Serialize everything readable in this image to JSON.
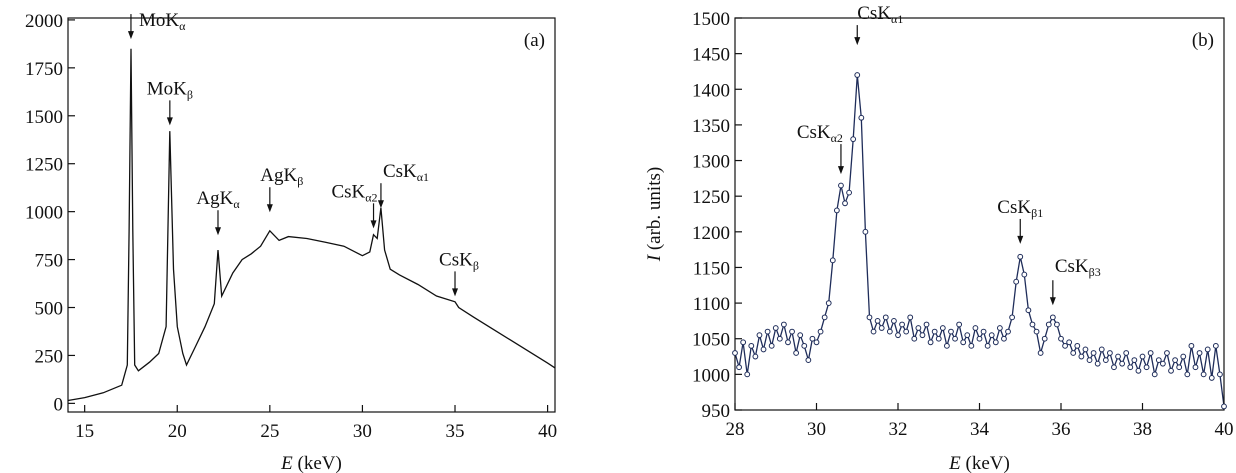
{
  "chart_data": [
    {
      "type": "line",
      "panel_label": "(a)",
      "x_label": "E (keV)",
      "color": "#111111",
      "xlim": [
        14.1,
        40.4
      ],
      "ylim": [
        -45,
        2010
      ],
      "xticks": [
        15,
        20,
        25,
        30,
        35,
        40
      ],
      "yticks": [
        0,
        250,
        500,
        750,
        1000,
        1250,
        1500,
        1750,
        2000
      ],
      "x": [
        14.1,
        15,
        16,
        17,
        17.3,
        17.4,
        17.5,
        17.6,
        17.7,
        17.9,
        18.5,
        19,
        19.4,
        19.6,
        19.8,
        20,
        20.3,
        20.5,
        21,
        21.5,
        22,
        22.2,
        22.4,
        23,
        23.5,
        24,
        24.5,
        25,
        25.5,
        26,
        27,
        28,
        29,
        30,
        30.4,
        30.6,
        30.8,
        31,
        31.2,
        31.5,
        32,
        33,
        34,
        35,
        35.2,
        36,
        37,
        38,
        39,
        40,
        40.4
      ],
      "values": [
        15,
        30,
        55,
        95,
        200,
        900,
        1850,
        900,
        200,
        170,
        215,
        260,
        400,
        1420,
        700,
        400,
        260,
        200,
        300,
        400,
        520,
        800,
        560,
        680,
        750,
        780,
        820,
        900,
        850,
        870,
        860,
        840,
        820,
        770,
        790,
        880,
        860,
        1020,
        800,
        700,
        670,
        620,
        560,
        530,
        500,
        450,
        390,
        330,
        270,
        210,
        185
      ],
      "annotations": [
        {
          "text": "MoK",
          "sub": "α",
          "x": 17.5,
          "y": 1900
        },
        {
          "text": "MoK",
          "sub": "β",
          "x": 19.6,
          "y": 1450
        },
        {
          "text": "AgK",
          "sub": "α",
          "x": 22.2,
          "y": 877
        },
        {
          "text": "AgK",
          "sub": "β",
          "x": 25.0,
          "y": 997
        },
        {
          "text": "CsK",
          "sub": "α2",
          "x": 30.6,
          "y": 913
        },
        {
          "text": "CsK",
          "sub": "α1",
          "x": 31.0,
          "y": 1018
        },
        {
          "text": "CsK",
          "sub": "β",
          "x": 35.0,
          "y": 558
        }
      ]
    },
    {
      "type": "line",
      "markers": true,
      "panel_label": "(b)",
      "x_label": "E (keV)",
      "y_label": "I (arb. units)",
      "color": "#1f2d5a",
      "xlim": [
        28,
        40
      ],
      "ylim": [
        950,
        1500
      ],
      "xticks": [
        28,
        30,
        32,
        34,
        36,
        38,
        40
      ],
      "yticks": [
        950,
        1000,
        1050,
        1100,
        1150,
        1200,
        1250,
        1300,
        1350,
        1400,
        1450,
        1500
      ],
      "x": [
        28.0,
        28.1,
        28.2,
        28.3,
        28.4,
        28.5,
        28.6,
        28.7,
        28.8,
        28.9,
        29.0,
        29.1,
        29.2,
        29.3,
        29.4,
        29.5,
        29.6,
        29.7,
        29.8,
        29.9,
        30.0,
        30.1,
        30.2,
        30.3,
        30.4,
        30.5,
        30.6,
        30.7,
        30.8,
        30.9,
        31.0,
        31.1,
        31.2,
        31.3,
        31.4,
        31.5,
        31.6,
        31.7,
        31.8,
        31.9,
        32.0,
        32.1,
        32.2,
        32.3,
        32.4,
        32.5,
        32.6,
        32.7,
        32.8,
        32.9,
        33.0,
        33.1,
        33.2,
        33.3,
        33.4,
        33.5,
        33.6,
        33.7,
        33.8,
        33.9,
        34.0,
        34.1,
        34.2,
        34.3,
        34.4,
        34.5,
        34.6,
        34.7,
        34.8,
        34.9,
        35.0,
        35.1,
        35.2,
        35.3,
        35.4,
        35.5,
        35.6,
        35.7,
        35.8,
        35.9,
        36.0,
        36.1,
        36.2,
        36.3,
        36.4,
        36.5,
        36.6,
        36.7,
        36.8,
        36.9,
        37.0,
        37.1,
        37.2,
        37.3,
        37.4,
        37.5,
        37.6,
        37.7,
        37.8,
        37.9,
        38.0,
        38.1,
        38.2,
        38.3,
        38.4,
        38.5,
        38.6,
        38.7,
        38.8,
        38.9,
        39.0,
        39.1,
        39.2,
        39.3,
        39.4,
        39.5,
        39.6,
        39.7,
        39.8,
        39.9,
        40.0
      ],
      "values": [
        1030,
        1010,
        1045,
        1000,
        1040,
        1025,
        1055,
        1035,
        1060,
        1040,
        1065,
        1050,
        1070,
        1045,
        1060,
        1030,
        1055,
        1040,
        1020,
        1050,
        1045,
        1060,
        1080,
        1100,
        1160,
        1230,
        1265,
        1240,
        1255,
        1330,
        1420,
        1360,
        1200,
        1080,
        1060,
        1075,
        1065,
        1080,
        1060,
        1075,
        1055,
        1070,
        1060,
        1080,
        1050,
        1065,
        1055,
        1070,
        1045,
        1060,
        1050,
        1065,
        1040,
        1060,
        1050,
        1070,
        1045,
        1055,
        1040,
        1065,
        1050,
        1060,
        1040,
        1055,
        1045,
        1065,
        1050,
        1060,
        1080,
        1130,
        1165,
        1140,
        1090,
        1070,
        1060,
        1030,
        1050,
        1070,
        1080,
        1070,
        1050,
        1040,
        1045,
        1030,
        1040,
        1025,
        1035,
        1020,
        1030,
        1015,
        1035,
        1020,
        1030,
        1010,
        1025,
        1015,
        1030,
        1010,
        1020,
        1005,
        1025,
        1010,
        1030,
        1000,
        1020,
        1015,
        1030,
        1005,
        1020,
        1010,
        1025,
        1000,
        1040,
        1010,
        1030,
        1000,
        1035,
        995,
        1040,
        1000,
        955
      ],
      "annotations": [
        {
          "text": "CsK",
          "sub": "α1",
          "x": 31.0,
          "y": 1462
        },
        {
          "text": "CsK",
          "sub": "α2",
          "x": 30.6,
          "y": 1281
        },
        {
          "text": "CsK",
          "sub": "β1",
          "x": 35.0,
          "y": 1183
        },
        {
          "text": "CsK",
          "sub": "β3",
          "x": 35.8,
          "y": 1097
        }
      ]
    }
  ]
}
